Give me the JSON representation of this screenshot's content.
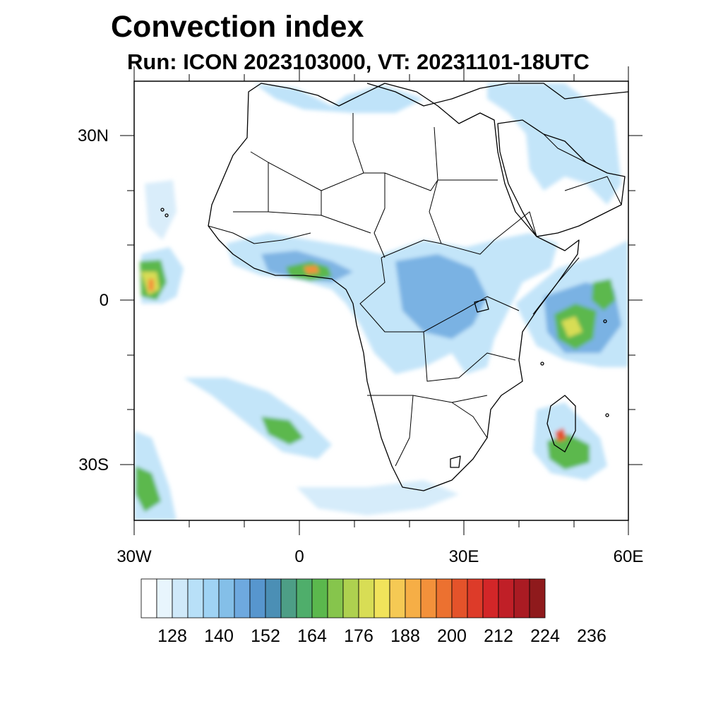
{
  "header": {
    "title": "Convection index",
    "subtitle": "Run: ICON 2023103000,  VT: 20231101-18UTC"
  },
  "axes": {
    "lat_labels": [
      "30N",
      "0",
      "30S"
    ],
    "lon_labels": [
      "30W",
      "0",
      "30E",
      "60E"
    ]
  },
  "map_data": {
    "lon_range": [
      -30,
      60
    ],
    "lat_range": [
      -40,
      40
    ],
    "field": "Convection index",
    "key_regions": [
      "Gulf of Guinea coast",
      "Central Africa",
      "Western Indian Ocean",
      "Madagascar",
      "South Atlantic",
      "Tropical North Atlantic"
    ]
  },
  "colorbar": {
    "colors": [
      "#ffffff",
      "#e8f5fd",
      "#cfe9f9",
      "#b8e0f8",
      "#9fd3f4",
      "#84bfe8",
      "#6ea9df",
      "#5796ce",
      "#4b8fb5",
      "#4d9e86",
      "#4fae6b",
      "#5bb84d",
      "#86c54c",
      "#aed14f",
      "#d8dd55",
      "#f1e35b",
      "#f5c954",
      "#f6ae46",
      "#f3913b",
      "#ec7130",
      "#e4532a",
      "#dd3b29",
      "#d32628",
      "#c01f27",
      "#aa1b23",
      "#8f1a1c"
    ],
    "labels": [
      "128",
      "140",
      "152",
      "164",
      "176",
      "188",
      "200",
      "212",
      "224",
      "236"
    ]
  }
}
